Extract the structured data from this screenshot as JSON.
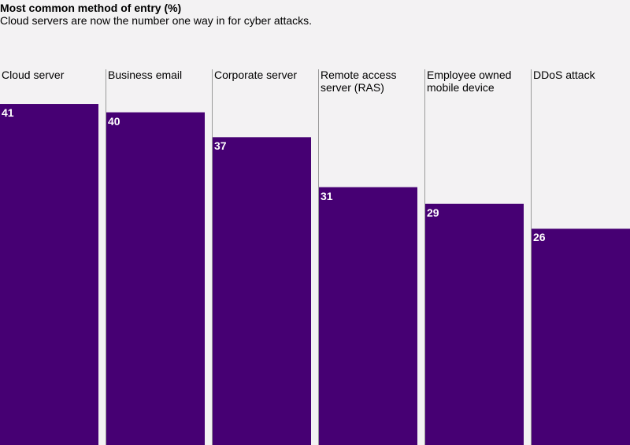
{
  "chart_data": {
    "type": "bar",
    "title": "Most common method of entry (%)",
    "subtitle": "Cloud servers are now the number one way in for cyber attacks.",
    "categories": [
      "Cloud server",
      "Business email",
      "Corporate server",
      "Remote access server (RAS)",
      "Employee owned mobile device",
      "DDoS attack"
    ],
    "values": [
      41,
      40,
      37,
      31,
      29,
      26
    ],
    "color": "#460073"
  }
}
